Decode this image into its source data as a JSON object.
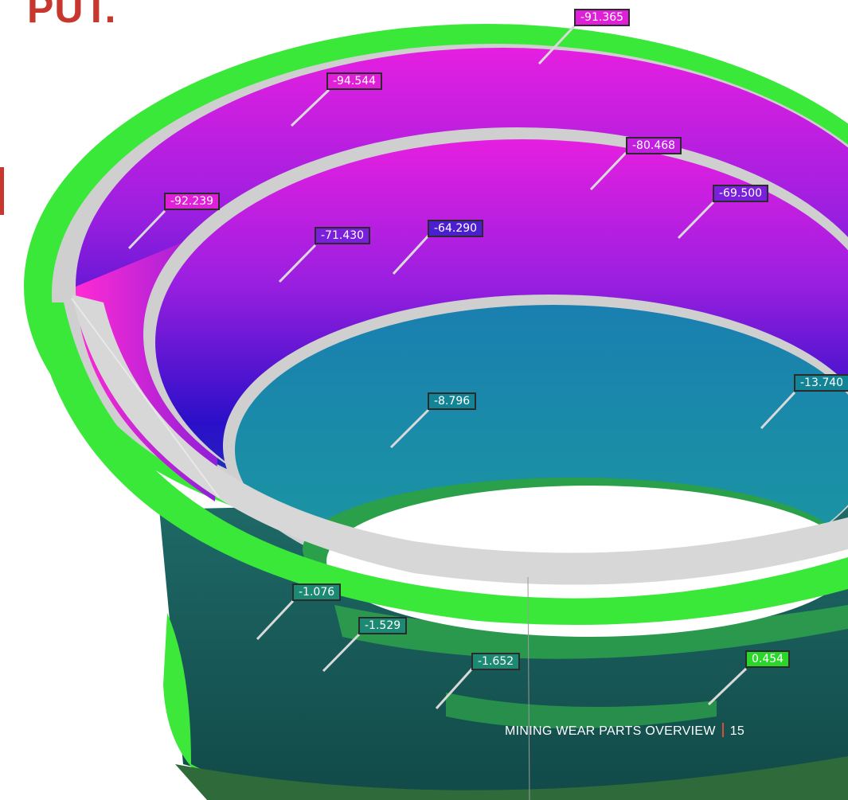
{
  "heading": "PUT.",
  "callouts": [
    {
      "label": "-91.365",
      "color": "#e01fd8"
    },
    {
      "label": "-94.544",
      "color": "#e01fd8"
    },
    {
      "label": "-80.468",
      "color": "#c11ee0"
    },
    {
      "label": "-92.239",
      "color": "#e01fd8"
    },
    {
      "label": "-69.500",
      "color": "#7a1fdb"
    },
    {
      "label": "-71.430",
      "color": "#7a1fdb"
    },
    {
      "label": "-64.290",
      "color": "#4b1fd0"
    },
    {
      "label": "-8.796",
      "color": "#138496"
    },
    {
      "label": "-13.740",
      "color": "#138496"
    },
    {
      "label": "-1.076",
      "color": "#1c8a72"
    },
    {
      "label": "-1.529",
      "color": "#1c8a72"
    },
    {
      "label": "-1.652",
      "color": "#1c8a72"
    },
    {
      "label": "0.454",
      "color": "#2ad62a"
    }
  ],
  "footer": {
    "title": "MINING WEAR PARTS OVERVIEW",
    "page": "15"
  },
  "colors": {
    "accent_red": "#c8372d",
    "wear_magenta": "#e01fd8",
    "wear_blue": "#2a10c8",
    "wear_teal": "#1a8aa0",
    "no_wear_green": "#2ee83a"
  }
}
